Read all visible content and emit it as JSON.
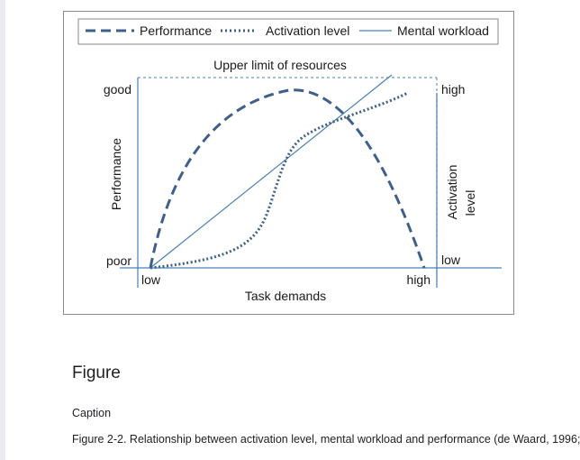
{
  "figure": {
    "legend": {
      "performance": "Performance",
      "activation": "Activation level",
      "workload": "Mental workload"
    },
    "upper_limit_label": "Upper limit of resources",
    "left_axis": {
      "title": "Performance",
      "top_label": "good",
      "bottom_label": "poor"
    },
    "right_axis": {
      "title_line1": "Activation",
      "title_line2": "level",
      "top_label": "high",
      "bottom_label": "low"
    },
    "x_axis": {
      "title": "Task demands",
      "start_label": "low",
      "end_label": "high"
    },
    "colors": {
      "curve": "#3d5f8a",
      "axis": "#4a7fb5",
      "limit": "#6f98c4"
    }
  },
  "heading": "Figure",
  "caption_label": "Caption",
  "caption_text": "Figure 2-2. Relationship between activation level, mental workload and performance (de Waard, 1996;"
}
